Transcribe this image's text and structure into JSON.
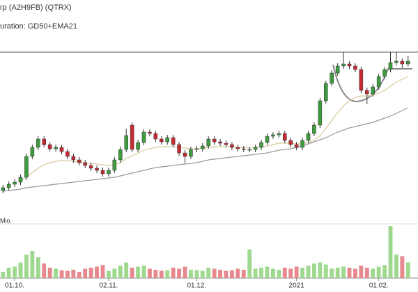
{
  "chart_data": [
    {
      "type": "candlestick",
      "title": "rp (A2H9FB) (QTRX)",
      "subtitle": "uration: GD50+EMA21",
      "xlim": [
        -0.5,
        69.5
      ],
      "xticks": [
        {
          "value": 2,
          "label": "01.10."
        },
        {
          "value": 18,
          "label": "02.11."
        },
        {
          "value": 33,
          "label": "01.12."
        },
        {
          "value": 50,
          "label": "2021"
        },
        {
          "value": 64,
          "label": "01.02."
        }
      ],
      "ylim": [
        0,
        225
      ],
      "up_color": "#3e9b3e",
      "down_color": "#c62a32",
      "open": [
        26,
        30,
        35,
        38,
        45,
        75,
        88,
        100,
        92,
        86,
        88,
        82,
        75,
        70,
        66,
        62,
        58,
        55,
        50,
        55,
        70,
        85,
        120,
        85,
        95,
        110,
        108,
        100,
        96,
        102,
        92,
        80,
        75,
        85,
        86,
        90,
        100,
        96,
        94,
        92,
        88,
        86,
        85,
        85,
        88,
        95,
        104,
        106,
        108,
        98,
        92,
        88,
        98,
        108,
        120,
        155,
        180,
        195,
        205,
        208,
        205,
        200,
        170,
        165,
        175,
        190,
        200,
        210,
        212,
        208
      ],
      "high": [
        34,
        39,
        42,
        49,
        79,
        92,
        104,
        104,
        96,
        92,
        92,
        86,
        79,
        74,
        70,
        66,
        62,
        59,
        59,
        74,
        89,
        115,
        124,
        99,
        114,
        114,
        112,
        104,
        106,
        106,
        96,
        84,
        89,
        90,
        94,
        104,
        104,
        100,
        98,
        96,
        92,
        90,
        89,
        92,
        99,
        108,
        110,
        112,
        112,
        102,
        96,
        102,
        112,
        124,
        159,
        184,
        199,
        209,
        225,
        212,
        209,
        204,
        174,
        179,
        194,
        204,
        225,
        225,
        216,
        220
      ],
      "low": [
        22,
        26,
        31,
        34,
        41,
        71,
        84,
        88,
        82,
        82,
        78,
        71,
        66,
        62,
        58,
        54,
        51,
        46,
        46,
        51,
        66,
        81,
        81,
        81,
        91,
        104,
        96,
        92,
        92,
        88,
        76,
        65,
        71,
        81,
        82,
        86,
        92,
        90,
        88,
        84,
        82,
        81,
        81,
        81,
        84,
        91,
        100,
        102,
        94,
        88,
        84,
        84,
        94,
        104,
        116,
        151,
        176,
        191,
        201,
        201,
        196,
        166,
        150,
        161,
        171,
        186,
        196,
        206,
        202,
        204
      ],
      "close": [
        30,
        35,
        38,
        45,
        75,
        88,
        100,
        92,
        86,
        88,
        82,
        75,
        70,
        66,
        62,
        58,
        55,
        50,
        55,
        70,
        85,
        105,
        85,
        95,
        110,
        108,
        100,
        96,
        102,
        92,
        80,
        75,
        85,
        86,
        90,
        100,
        96,
        94,
        92,
        88,
        86,
        85,
        85,
        88,
        95,
        104,
        106,
        108,
        98,
        92,
        88,
        98,
        108,
        120,
        155,
        180,
        195,
        205,
        208,
        205,
        200,
        170,
        165,
        175,
        190,
        200,
        210,
        212,
        208,
        212
      ],
      "series": [
        {
          "name": "GD50",
          "color": "#999999",
          "values": [
            25,
            26,
            27,
            28,
            30,
            31,
            32,
            33,
            34,
            35,
            36,
            37,
            38,
            39,
            40,
            41,
            42,
            43,
            44,
            45,
            47,
            49,
            51,
            53,
            55,
            57,
            59,
            60,
            61,
            62,
            63,
            64,
            65,
            66,
            68,
            70,
            71,
            72,
            73,
            74,
            75,
            76,
            77,
            78,
            79,
            80,
            82,
            84,
            85,
            86,
            88,
            90,
            93,
            96,
            99,
            102,
            106,
            110,
            113,
            116,
            118,
            120,
            122,
            124,
            127,
            130,
            133,
            137,
            141,
            145
          ]
        },
        {
          "name": "EMA21",
          "color": "#d8c99a",
          "values": [
            null,
            null,
            null,
            40,
            45,
            52,
            58,
            63,
            66,
            68,
            69,
            69,
            68,
            67,
            66,
            65,
            64,
            63,
            62,
            63,
            66,
            72,
            76,
            80,
            84,
            86,
            88,
            89,
            89,
            89,
            88,
            87,
            86,
            86,
            87,
            88,
            89,
            89,
            89,
            89,
            88,
            88,
            88,
            88,
            89,
            90,
            92,
            94,
            94,
            94,
            93,
            93,
            95,
            98,
            105,
            115,
            127,
            138,
            148,
            155,
            160,
            162,
            162,
            163,
            166,
            170,
            176,
            182,
            186,
            190
          ]
        }
      ]
    },
    {
      "type": "bar",
      "ylabel": "Mio.",
      "ylim": [
        0,
        100
      ],
      "up_color": "#9fd88f",
      "down_color": "#e68a8f",
      "values": [
        12,
        20,
        22,
        30,
        45,
        52,
        40,
        28,
        20,
        18,
        15,
        14,
        16,
        12,
        18,
        20,
        22,
        25,
        14,
        18,
        24,
        30,
        20,
        22,
        24,
        18,
        16,
        14,
        15,
        20,
        18,
        22,
        16,
        15,
        14,
        20,
        18,
        16,
        14,
        15,
        18,
        16,
        55,
        18,
        20,
        22,
        18,
        16,
        20,
        18,
        22,
        20,
        24,
        28,
        30,
        26,
        18,
        20,
        22,
        20,
        18,
        24,
        20,
        18,
        22,
        25,
        100,
        45,
        42,
        30
      ]
    }
  ]
}
